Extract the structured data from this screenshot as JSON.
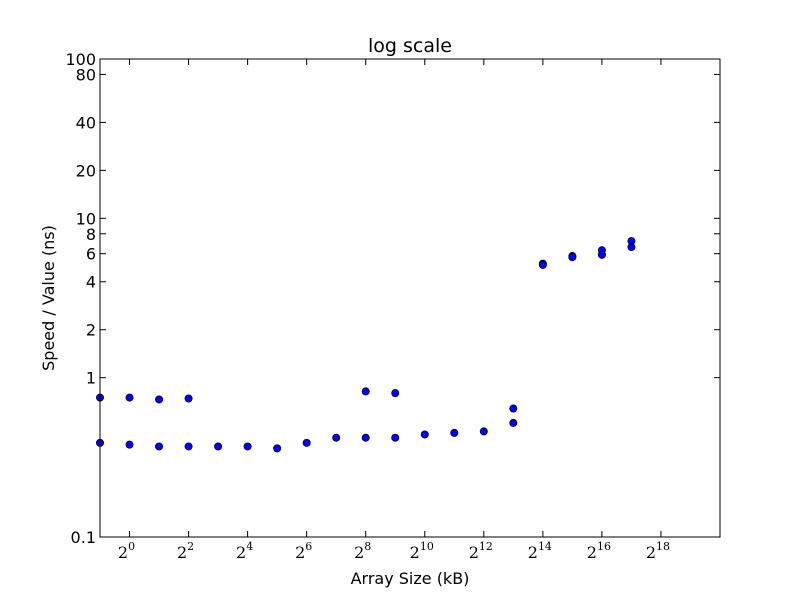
{
  "chart_data": {
    "type": "scatter",
    "title": "log scale",
    "xlabel": "Array Size (kB)",
    "ylabel": "Speed / Value (ns)",
    "x_scale": "log2",
    "y_scale": "log10",
    "xlim_exp": [
      -1,
      20
    ],
    "ylim": [
      0.1,
      100
    ],
    "grid": false,
    "x_ticks": [
      {
        "exp": 0,
        "base": "2",
        "power": "0"
      },
      {
        "exp": 2,
        "base": "2",
        "power": "2"
      },
      {
        "exp": 4,
        "base": "2",
        "power": "4"
      },
      {
        "exp": 6,
        "base": "2",
        "power": "6"
      },
      {
        "exp": 8,
        "base": "2",
        "power": "8"
      },
      {
        "exp": 10,
        "base": "2",
        "power": "10"
      },
      {
        "exp": 12,
        "base": "2",
        "power": "12"
      },
      {
        "exp": 14,
        "base": "2",
        "power": "14"
      },
      {
        "exp": 16,
        "base": "2",
        "power": "16"
      },
      {
        "exp": 18,
        "base": "2",
        "power": "18"
      }
    ],
    "y_ticks": [
      {
        "value": 0.1,
        "label": "0.1"
      },
      {
        "value": 1,
        "label": "1"
      },
      {
        "value": 2,
        "label": "2"
      },
      {
        "value": 4,
        "label": "4"
      },
      {
        "value": 6,
        "label": "6"
      },
      {
        "value": 8,
        "label": "8"
      },
      {
        "value": 10,
        "label": "10"
      },
      {
        "value": 20,
        "label": "20"
      },
      {
        "value": 40,
        "label": "40"
      },
      {
        "value": 80,
        "label": "80"
      },
      {
        "value": 100,
        "label": "100"
      }
    ],
    "marker_color": "#0000ff",
    "points": [
      {
        "x_exp": -1,
        "y": 0.75
      },
      {
        "x_exp": -1,
        "y": 0.39
      },
      {
        "x_exp": 0,
        "y": 0.75
      },
      {
        "x_exp": 0,
        "y": 0.38
      },
      {
        "x_exp": 1,
        "y": 0.73
      },
      {
        "x_exp": 1,
        "y": 0.37
      },
      {
        "x_exp": 2,
        "y": 0.74
      },
      {
        "x_exp": 2,
        "y": 0.37
      },
      {
        "x_exp": 3,
        "y": 0.37
      },
      {
        "x_exp": 4,
        "y": 0.37
      },
      {
        "x_exp": 5,
        "y": 0.36
      },
      {
        "x_exp": 6,
        "y": 0.39
      },
      {
        "x_exp": 7,
        "y": 0.42
      },
      {
        "x_exp": 8,
        "y": 0.82
      },
      {
        "x_exp": 8,
        "y": 0.42
      },
      {
        "x_exp": 9,
        "y": 0.8
      },
      {
        "x_exp": 9,
        "y": 0.42
      },
      {
        "x_exp": 10,
        "y": 0.44
      },
      {
        "x_exp": 11,
        "y": 0.45
      },
      {
        "x_exp": 12,
        "y": 0.46
      },
      {
        "x_exp": 13,
        "y": 0.64
      },
      {
        "x_exp": 13,
        "y": 0.52
      },
      {
        "x_exp": 14,
        "y": 5.2
      },
      {
        "x_exp": 14,
        "y": 5.1
      },
      {
        "x_exp": 15,
        "y": 5.8
      },
      {
        "x_exp": 15,
        "y": 5.7
      },
      {
        "x_exp": 16,
        "y": 6.3
      },
      {
        "x_exp": 16,
        "y": 5.9
      },
      {
        "x_exp": 17,
        "y": 7.2
      },
      {
        "x_exp": 17,
        "y": 6.6
      }
    ]
  }
}
